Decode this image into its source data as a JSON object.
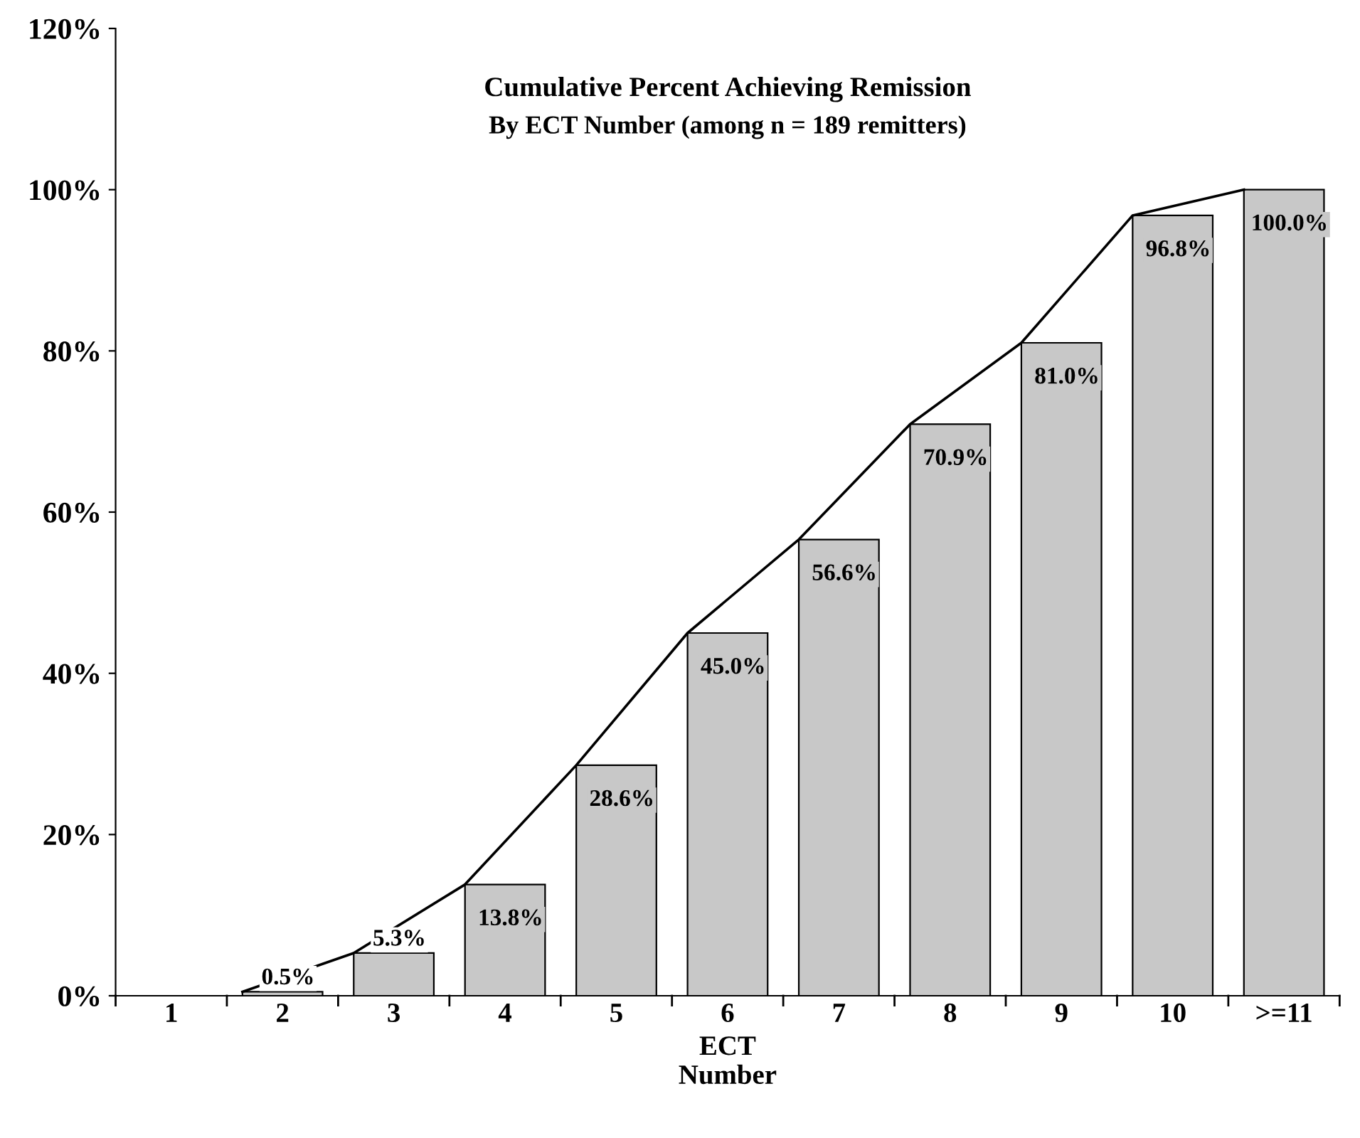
{
  "chart_data": {
    "type": "bar",
    "title": "Cumulative Percent Achieving Remission",
    "subtitle": "By ECT Number (among n = 189 remitters)",
    "xlabel": "ECT\nNumber",
    "categories": [
      "1",
      "2",
      "3",
      "4",
      "5",
      "6",
      "7",
      "8",
      "9",
      "10",
      ">=11"
    ],
    "series": [
      {
        "color": "#c8c8c8",
        "values": [
          null,
          0.5,
          5.3,
          13.8,
          28.6,
          45.0,
          56.6,
          70.9,
          81.0,
          96.8,
          100.0
        ],
        "value_labels": [
          null,
          "0.5%",
          "5.3%",
          "13.8%",
          "28.6%",
          "45.0%",
          "56.6%",
          "70.9%",
          "81.0%",
          "96.8%",
          "100.0%"
        ]
      },
      {
        "type": "line",
        "color": "#000000",
        "values": [
          null,
          0.5,
          5.3,
          13.8,
          28.6,
          45.0,
          56.6,
          70.9,
          81.0,
          96.8,
          100.0
        ]
      }
    ],
    "ylim": [
      0,
      120
    ],
    "yticks": [
      {
        "value": 0,
        "label": "0%"
      },
      {
        "value": 20,
        "label": "20%"
      },
      {
        "value": 40,
        "label": "40%"
      },
      {
        "value": 60,
        "label": "60%"
      },
      {
        "value": 80,
        "label": "80%"
      },
      {
        "value": 100,
        "label": "100%"
      },
      {
        "value": 120,
        "label": "120%"
      }
    ],
    "grid": false,
    "legend": false,
    "marker": "none",
    "line_style": "solid"
  }
}
